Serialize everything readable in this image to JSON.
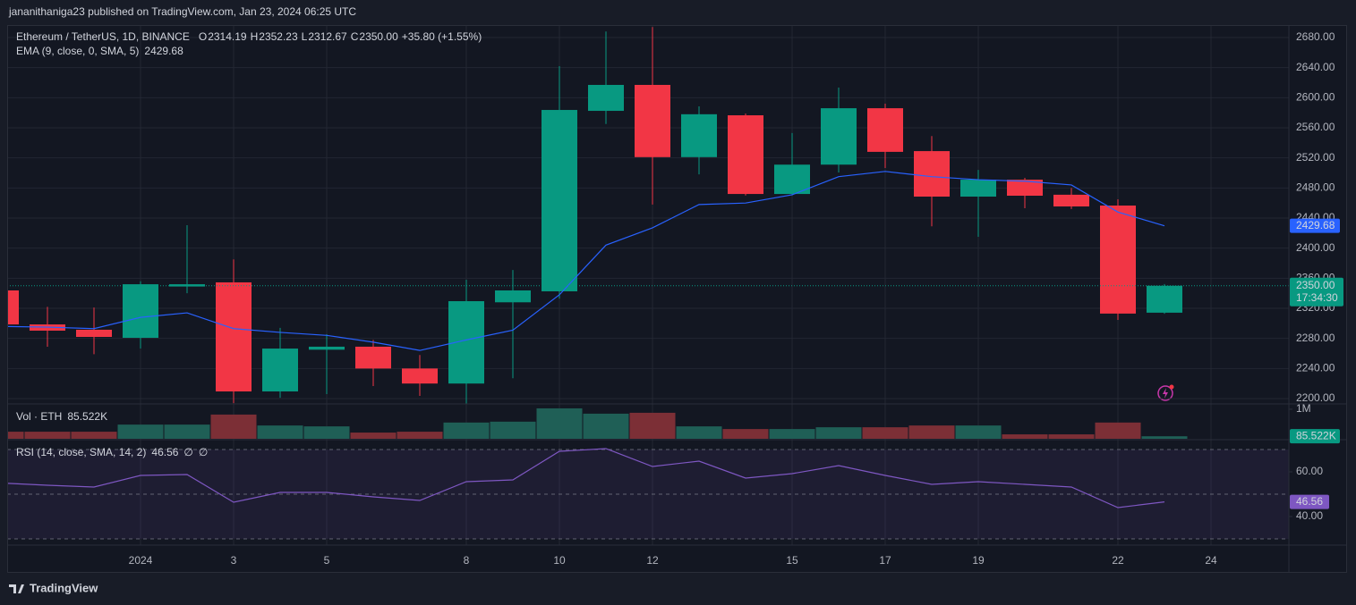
{
  "header": {
    "byline": "jananithaniga23 published on TradingView.com, Jan 23, 2024 06:25 UTC"
  },
  "footer": {
    "brand": "TradingView"
  },
  "chart_data": [
    {
      "type": "candlestick",
      "title": "Ethereum / TetherUS, 1D, BINANCE",
      "ohlc_names": [
        "O",
        "H",
        "L",
        "C"
      ],
      "change": "+35.80 (+1.55%)",
      "categories": [
        null,
        null,
        null,
        "2024",
        null,
        "3",
        null,
        "5",
        null,
        null,
        "8",
        null,
        "10",
        null,
        "12",
        null,
        null,
        "15",
        null,
        "17",
        null,
        "19",
        null,
        null,
        "22",
        null,
        "24"
      ],
      "open": [
        2343.8,
        2298.6,
        2291.5,
        2280.8,
        2349,
        2354.5,
        2209.5,
        2265,
        2269,
        2240,
        2220,
        2328,
        2342.6,
        2582.5,
        2617,
        2521,
        2576.6,
        2472,
        2511,
        2586,
        2529,
        2468.5,
        2491,
        2471,
        2456.6,
        2314.19,
        null
      ],
      "high": [
        2350,
        2322,
        2321,
        2356,
        2430.5,
        2385,
        2294,
        2285.5,
        2278,
        2258,
        2358,
        2371,
        2642,
        2688,
        2694,
        2588.5,
        2579,
        2553,
        2613.5,
        2592,
        2549,
        2504,
        2493.5,
        2480,
        2465,
        2352.23,
        null
      ],
      "low": [
        2295,
        2269,
        2259,
        2266.5,
        2340,
        2194,
        2201,
        2206,
        2216.6,
        2203.6,
        2193,
        2227,
        2333,
        2565,
        2458,
        2498,
        2470,
        2470,
        2500.6,
        2506.5,
        2429,
        2415,
        2453,
        2452,
        2304.5,
        2312.67,
        null
      ],
      "close": [
        2298.6,
        2290.3,
        2282,
        2352,
        2352,
        2209.5,
        2266.5,
        2269,
        2240,
        2220,
        2329.5,
        2343.8,
        2583.7,
        2617,
        2521,
        2578,
        2472,
        2511,
        2586,
        2528,
        2468.5,
        2491,
        2469.7,
        2455.4,
        2313,
        2350,
        null
      ],
      "value_labels": {
        "open": {
          "25": "2314.19"
        },
        "high": {
          "25": "2352.23"
        },
        "low": {
          "25": "2312.67"
        },
        "close": {
          "25": "2350.00"
        }
      },
      "countdown": "17:34:30",
      "up_color": "#089981",
      "down_color": "#f23645",
      "overlay": {
        "name": "EMA (9, close, 0, SMA, 5)",
        "color": "#2962ff",
        "values": [
          2296,
          2295,
          2293,
          2308,
          2314,
          2293,
          2288,
          2284,
          2275,
          2264,
          2278,
          2291,
          2338,
          2404,
          2427,
          2458,
          2460,
          2471,
          2495,
          2502,
          2495,
          2491,
          2489,
          2484,
          2448,
          2429.68,
          null
        ],
        "value_labels": {
          "25": "2429.68"
        }
      },
      "ylim": [
        2192.9,
        2696.6
      ],
      "yticks": [
        {
          "value": 2200,
          "label": "2200.00"
        },
        {
          "value": 2240,
          "label": "2240.00"
        },
        {
          "value": 2280,
          "label": "2280.00"
        },
        {
          "value": 2320,
          "label": "2320.00"
        },
        {
          "value": 2360,
          "label": "2360.00"
        },
        {
          "value": 2400,
          "label": "2400.00"
        },
        {
          "value": 2440,
          "label": "2440.00"
        },
        {
          "value": 2480,
          "label": "2480.00"
        },
        {
          "value": 2520,
          "label": "2520.00"
        },
        {
          "value": 2560,
          "label": "2560.00"
        },
        {
          "value": 2600,
          "label": "2600.00"
        },
        {
          "value": 2640,
          "label": "2640.00"
        },
        {
          "value": 2680,
          "label": "2680.00"
        }
      ],
      "grid": true
    },
    {
      "type": "bar",
      "title": "Vol · ETH",
      "values": [
        240000,
        240000,
        240000,
        480000,
        480000,
        820000,
        450000,
        420000,
        210000,
        240000,
        550000,
        580000,
        1030000,
        850000,
        880000,
        420000,
        330000,
        330000,
        390000,
        390000,
        450000,
        450000,
        150000,
        150000,
        550000,
        85522,
        null
      ],
      "value_labels": {
        "25": "85.522K"
      },
      "up_color": "#1f5f56",
      "down_color": "#7c2f36",
      "badge_color": "#089981",
      "ylim": [
        0,
        1180000
      ],
      "yticks": [
        {
          "value": 1000000,
          "label": "1M"
        }
      ]
    },
    {
      "type": "line",
      "title": "RSI (14, close, SMA, 14, 2)",
      "values": [
        55,
        54,
        53.2,
        58.4,
        58.8,
        46.4,
        50.8,
        50.8,
        48.8,
        47.2,
        55.6,
        56.4,
        69.2,
        70.4,
        62.4,
        64.8,
        57.2,
        59.2,
        62.8,
        58.4,
        54.4,
        55.6,
        54.4,
        53.2,
        44,
        46.56,
        null
      ],
      "value_labels": {
        "25": "46.56"
      },
      "na_labels": [
        "∅",
        "∅"
      ],
      "color": "#7e57c2",
      "bands": [
        70,
        50,
        30
      ],
      "ylim": [
        27.2,
        73.6
      ],
      "yticks": [
        {
          "value": 40,
          "label": "40.00"
        },
        {
          "value": 60,
          "label": "60.00"
        }
      ]
    }
  ]
}
